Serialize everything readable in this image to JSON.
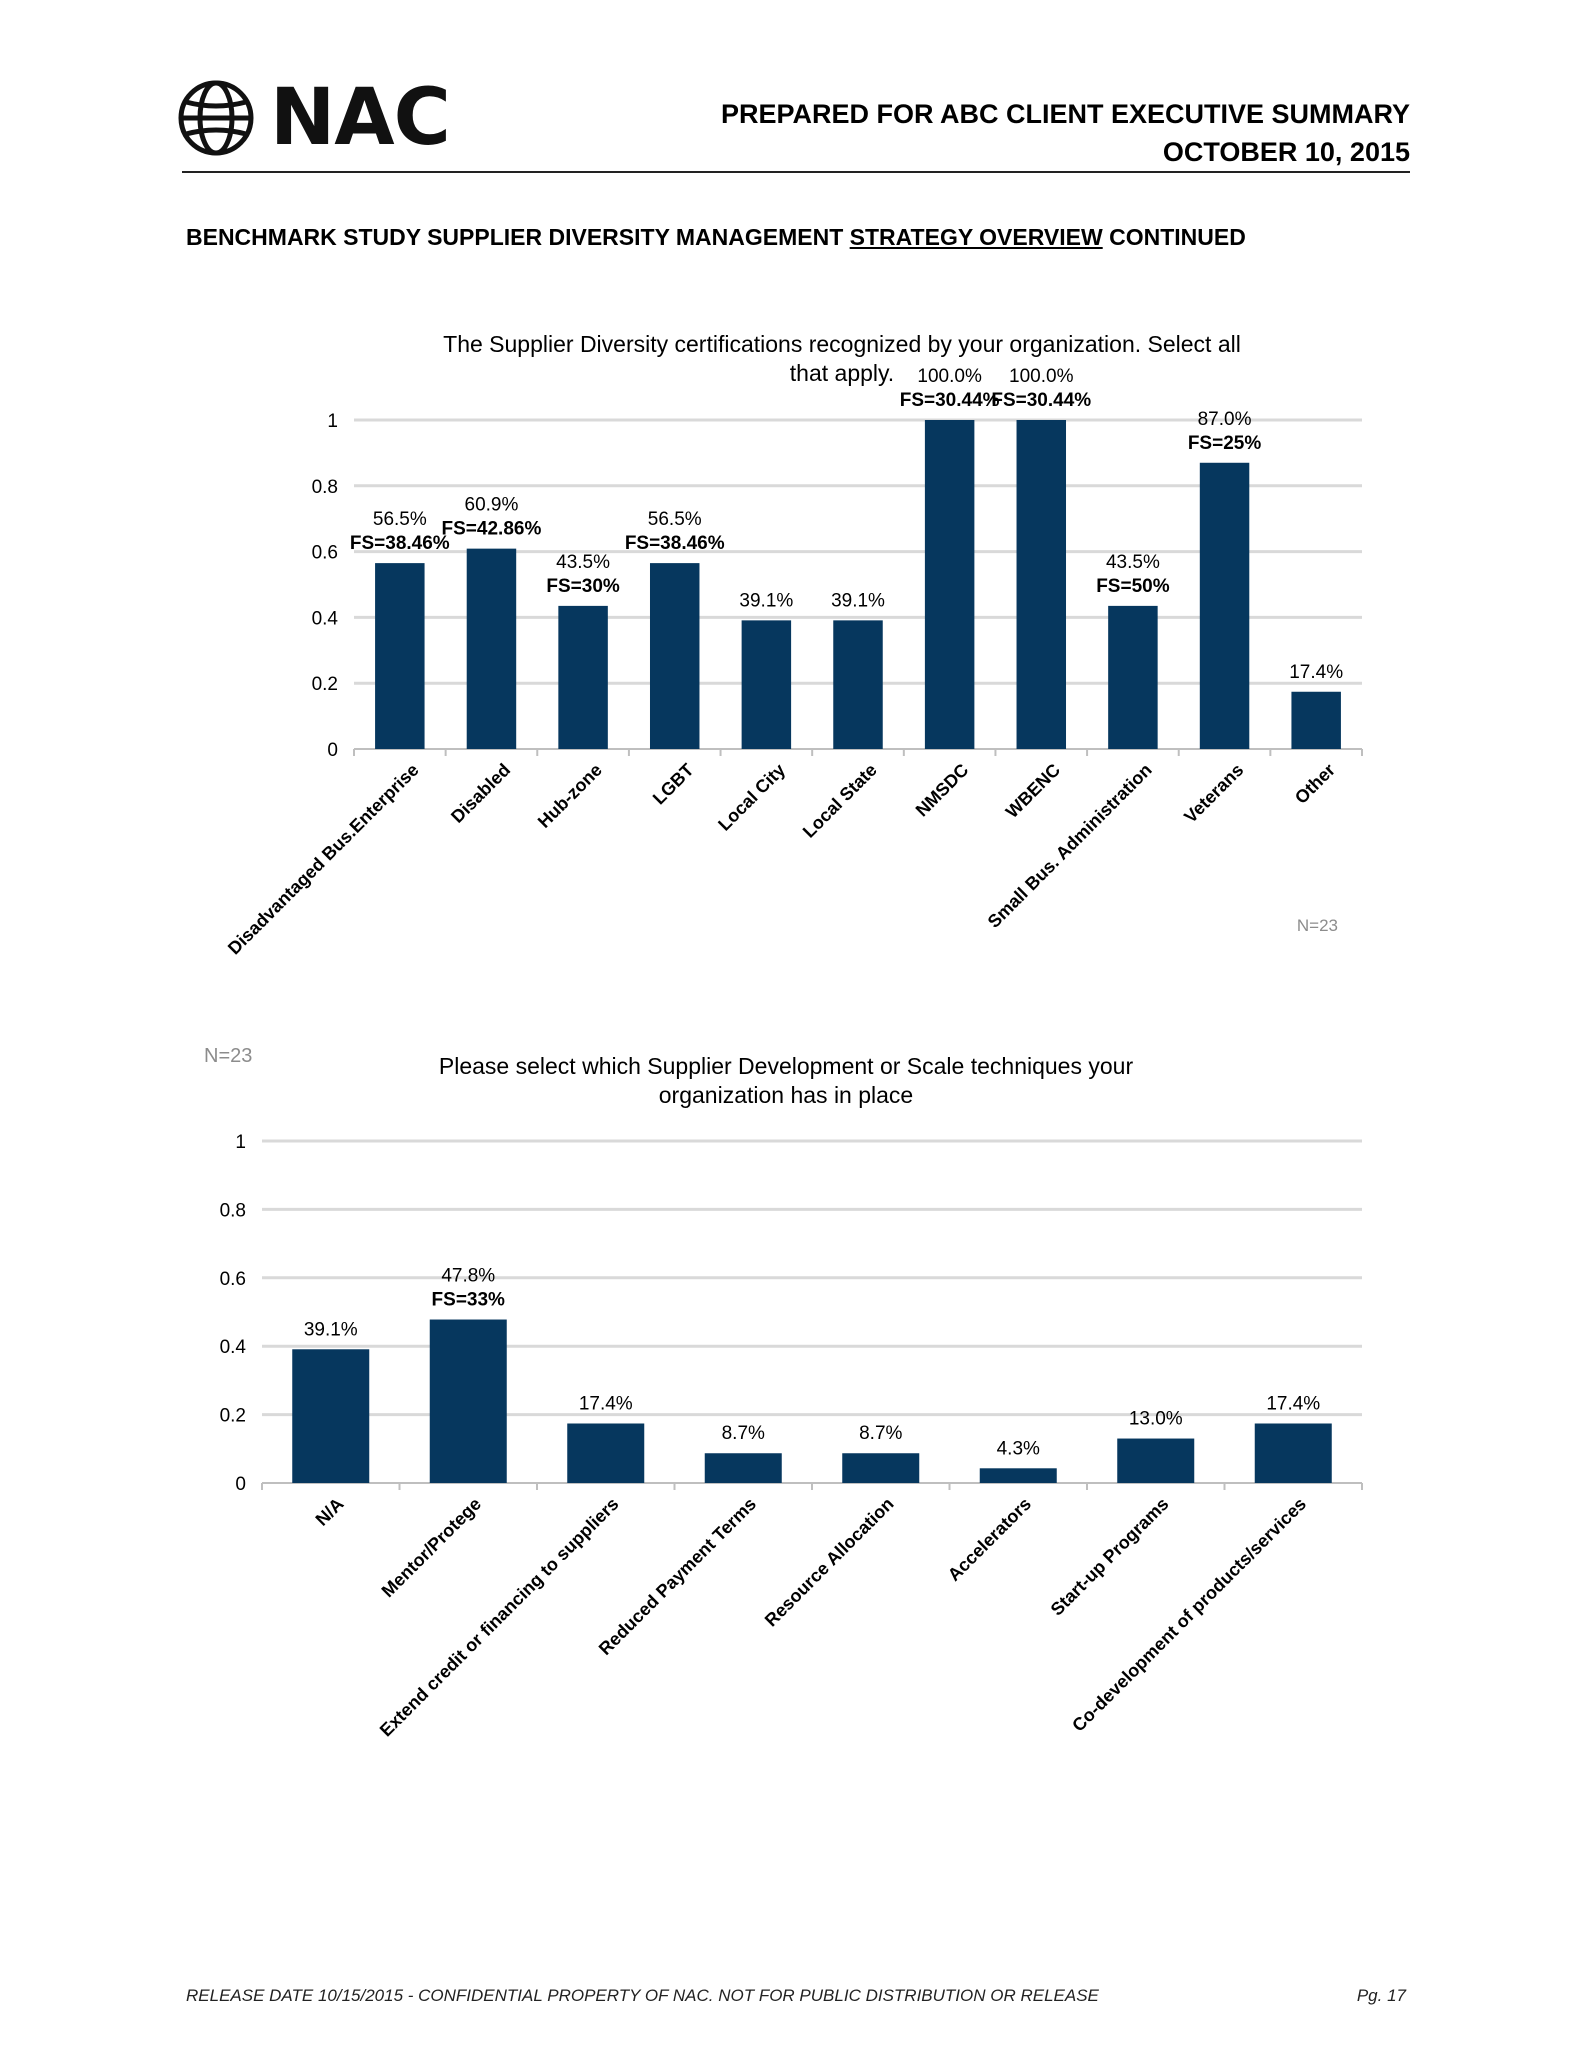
{
  "header": {
    "logo_text": "NAC",
    "title_line1": "PREPARED FOR ABC CLIENT EXECUTIVE SUMMARY",
    "title_line2": "OCTOBER 10, 2015"
  },
  "section": {
    "title_before": "BENCHMARK STUDY SUPPLIER DIVERSITY MANAGEMENT ",
    "title_underlined": "STRATEGY OVERVIEW",
    "title_after": " CONTINUED"
  },
  "footer": {
    "left": "RELEASE DATE 10/15/2015 - CONFIDENTIAL PROPERTY OF NAC. NOT FOR PUBLIC DISTRIBUTION OR RELEASE",
    "right": "Pg. 17"
  },
  "colors": {
    "bar": "#06375e",
    "grid": "#d9d9d9",
    "axis": "#bfbfbf"
  },
  "chart_data": [
    {
      "type": "bar",
      "title_lines": [
        "The Supplier Diversity certifications recognized by your organization.  Select all",
        "that apply."
      ],
      "note": "N=23",
      "ylim": [
        0,
        1
      ],
      "yticks": [
        "0",
        "0.2",
        "0.4",
        "0.6",
        "0.8",
        "1"
      ],
      "grid": true,
      "categories": [
        "Disadvantaged Bus.Enterprise",
        "Disabled",
        "Hub-zone",
        "LGBT",
        "Local City",
        "Local State",
        "NMSDC",
        "WBENC",
        "Small Bus. Administration",
        "Veterans",
        "Other"
      ],
      "values": [
        0.565,
        0.609,
        0.435,
        0.565,
        0.391,
        0.391,
        1.0,
        1.0,
        0.435,
        0.87,
        0.174
      ],
      "labels": [
        "56.5%",
        "60.9%",
        "43.5%",
        "56.5%",
        "39.1%",
        "39.1%",
        "100.0%",
        "100.0%",
        "43.5%",
        "87.0%",
        "17.4%"
      ],
      "fs_labels": [
        "FS=38.46%",
        "FS=42.86%",
        "FS=30%",
        "FS=38.46%",
        "",
        "",
        "FS=30.44%",
        "FS=30.44%",
        "FS=50%",
        "FS=25%",
        ""
      ]
    },
    {
      "type": "bar",
      "title_lines": [
        "Please select which Supplier Development or Scale techniques your",
        "organization has in place"
      ],
      "note": "N=23",
      "ylim": [
        0,
        1
      ],
      "yticks": [
        "0",
        "0.2",
        "0.4",
        "0.6",
        "0.8",
        "1"
      ],
      "grid": true,
      "categories": [
        "N/A",
        "Mentor/Protege",
        "Extend credit or financing to suppliers",
        "Reduced Payment Terms",
        "Resource Allocation",
        "Accelerators",
        "Start-up Programs",
        "Co-development of products/services"
      ],
      "values": [
        0.391,
        0.478,
        0.174,
        0.087,
        0.087,
        0.043,
        0.13,
        0.174
      ],
      "labels": [
        "39.1%",
        "47.8%",
        "17.4%",
        "8.7%",
        "8.7%",
        "4.3%",
        "13.0%",
        "17.4%"
      ],
      "fs_labels": [
        "",
        "FS=33%",
        "",
        "",
        "",
        "",
        "",
        ""
      ]
    }
  ]
}
